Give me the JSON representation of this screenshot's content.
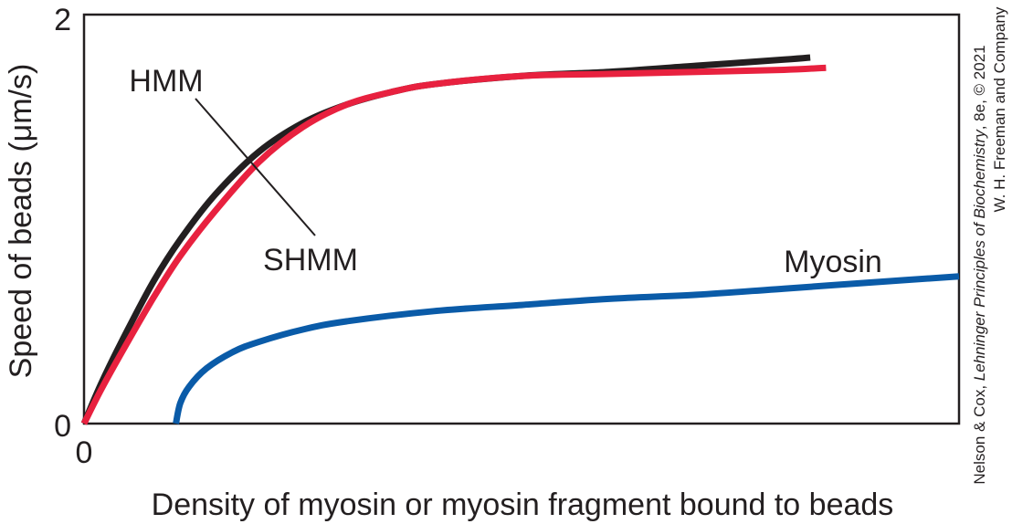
{
  "chart_data": {
    "type": "line",
    "xlabel": "Density of myosin or myosin fragment bound to beads",
    "ylabel": "Speed of beads (μm/s)",
    "xlim": [
      0,
      1
    ],
    "ylim": [
      0,
      2
    ],
    "x_ticks": [
      {
        "value": 0,
        "label": "0"
      }
    ],
    "y_ticks": [
      {
        "value": 0,
        "label": "0"
      },
      {
        "value": 2,
        "label": "2"
      }
    ],
    "grid": false,
    "legend": "none",
    "series": [
      {
        "name": "HMM",
        "color": "#231f20",
        "x": [
          0,
          0.02,
          0.05,
          0.08,
          0.11,
          0.15,
          0.2,
          0.25,
          0.3,
          0.35,
          0.4,
          0.5,
          0.6,
          0.7,
          0.8,
          0.83
        ],
        "y": [
          0,
          0.2,
          0.46,
          0.7,
          0.9,
          1.12,
          1.33,
          1.47,
          1.56,
          1.62,
          1.66,
          1.7,
          1.72,
          1.75,
          1.78,
          1.79
        ]
      },
      {
        "name": "SHMM",
        "color": "#e8213f",
        "x": [
          0,
          0.02,
          0.05,
          0.08,
          0.11,
          0.15,
          0.2,
          0.25,
          0.3,
          0.35,
          0.4,
          0.5,
          0.6,
          0.7,
          0.8,
          0.848
        ],
        "y": [
          0,
          0.17,
          0.4,
          0.62,
          0.82,
          1.04,
          1.28,
          1.45,
          1.56,
          1.62,
          1.66,
          1.7,
          1.71,
          1.72,
          1.73,
          1.74
        ]
      },
      {
        "name": "Myosin",
        "color": "#0a5ba8",
        "x": [
          0.105,
          0.11,
          0.12,
          0.14,
          0.17,
          0.2,
          0.25,
          0.3,
          0.4,
          0.5,
          0.6,
          0.7,
          0.8,
          0.9,
          1.0
        ],
        "y": [
          0,
          0.1,
          0.18,
          0.27,
          0.35,
          0.4,
          0.46,
          0.5,
          0.55,
          0.58,
          0.61,
          0.63,
          0.66,
          0.69,
          0.72
        ]
      }
    ],
    "annotations": [
      {
        "text": "HMM",
        "target": "HMM",
        "at": [
          0.12,
          1.7
        ]
      },
      {
        "text": "SHMM",
        "target": "SHMM",
        "at": [
          0.29,
          0.82
        ]
      },
      {
        "text": "Myosin",
        "target": "Myosin",
        "at": [
          0.88,
          0.72
        ]
      }
    ]
  },
  "credit": {
    "line1_prefix": "Nelson & Cox, ",
    "line1_title": "Lehninger Principles of Biochemistry",
    "line1_suffix": ", 8e, © 2021",
    "line2": "W. H. Freeman and Company"
  },
  "colors": {
    "frame": "#231f20",
    "text": "#231f20"
  }
}
